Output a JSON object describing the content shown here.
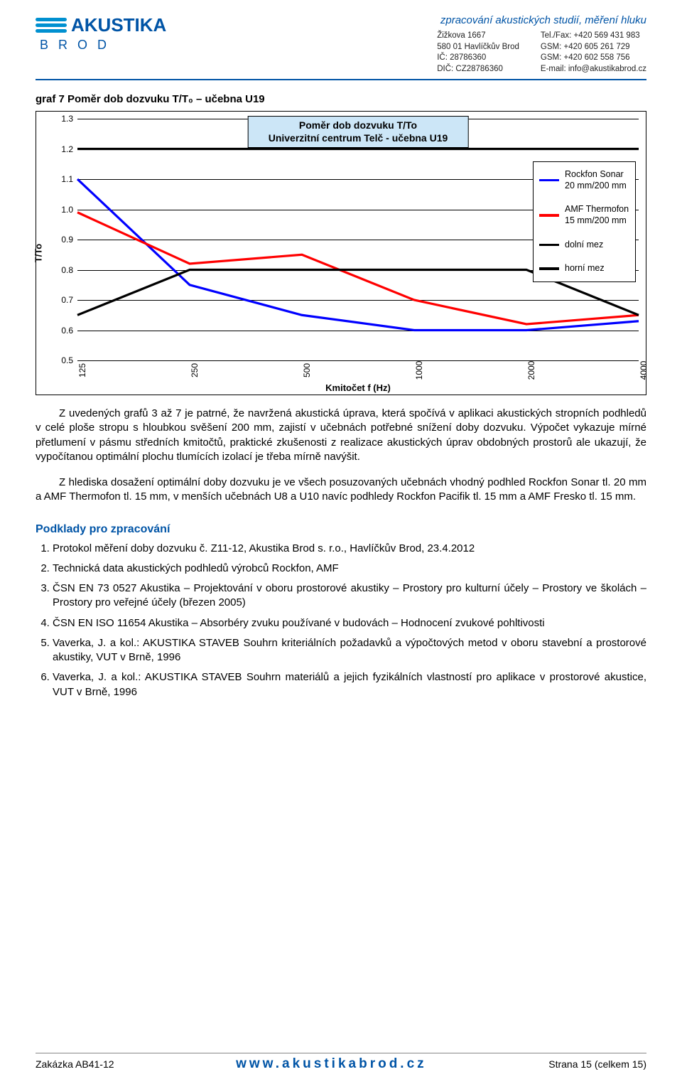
{
  "header": {
    "logo_text": "AKUSTIKA",
    "logo_sub": "BROD",
    "tagline": "zpracování akustických studií, měření hluku",
    "addr": {
      "line1": "Žižkova 1667",
      "line2": "580 01 Havlíčkův Brod",
      "line3": "IČ: 28786360",
      "line4": "DIČ: CZ28786360"
    },
    "contact": {
      "line1": "Tel./Fax: +420 569 431 983",
      "line2": "GSM:     +420 605 261 729",
      "line3": "GSM:     +420 602 558 756",
      "line4": "E-mail:  info@akustikabrod.cz"
    }
  },
  "chart_heading": "graf 7 Poměr dob dozvuku T/T₀ – učebna U19",
  "chart": {
    "title_line1": "Poměr dob dozvuku T/To",
    "title_line2": "Univerzitní centrum Telč - učebna U19",
    "yaxis_label": "T/To",
    "xaxis_label": "Kmitočet f (Hz)",
    "ylim": [
      0.5,
      1.3
    ],
    "yticks": [
      0.5,
      0.6,
      0.7,
      0.8,
      0.9,
      1.0,
      1.1,
      1.2,
      1.3
    ],
    "x_categories": [
      "125",
      "250",
      "500",
      "1000",
      "2000",
      "4000"
    ],
    "grid_color": "#000000",
    "series": [
      {
        "name": "Rockfon Sonar 20 mm/200 mm",
        "color": "#0000ff",
        "values": [
          1.1,
          0.75,
          0.65,
          0.6,
          0.6,
          0.63
        ]
      },
      {
        "name": "AMF Thermofon 15 mm/200 mm",
        "color": "#ff0000",
        "values": [
          0.99,
          0.82,
          0.85,
          0.7,
          0.62,
          0.65
        ]
      },
      {
        "name": "dolní mez",
        "color": "#000000",
        "values": [
          0.65,
          0.8,
          0.8,
          0.8,
          0.8,
          0.65
        ]
      },
      {
        "name": "horní mez",
        "color": "#000000",
        "values": [
          1.2,
          1.2,
          1.2,
          1.2,
          1.2,
          1.2
        ]
      }
    ],
    "legend": [
      {
        "label": "Rockfon Sonar 20 mm/200 mm",
        "color": "#0000ff"
      },
      {
        "label": "AMF Thermofon 15 mm/200 mm",
        "color": "#ff0000"
      },
      {
        "label": "dolní mez",
        "color": "#000000"
      },
      {
        "label": "horní mez",
        "color": "#000000"
      }
    ]
  },
  "para1": "Z uvedených grafů 3 až 7 je patrné, že navržená akustická úprava, která spočívá v aplikaci akustických stropních podhledů v celé ploše stropu s hloubkou svěšení 200 mm, zajistí v učebnách potřebné snížení doby dozvuku. Výpočet vykazuje mírné přetlumení v pásmu středních kmitočtů, praktické zkušenosti z realizace akustických úprav obdobných prostorů ale ukazují, že vypočítanou optimální plochu tlumících izolací je třeba mírně navýšit.",
  "para2": "Z hlediska dosažení optimální doby dozvuku je ve všech posuzovaných učebnách vhodný podhled Rockfon Sonar tl. 20 mm a AMF Thermofon tl. 15 mm, v menších učebnách U8 a U10 navíc podhledy Rockfon Pacifik tl. 15 mm a AMF Fresko tl. 15 mm.",
  "refs_heading": "Podklady pro zpracování",
  "refs": [
    "Protokol měření doby dozvuku č. Z11-12, Akustika Brod s. r.o., Havlíčkův Brod, 23.4.2012",
    "Technická data akustických podhledů výrobců Rockfon, AMF",
    "ČSN EN 73 0527 Akustika – Projektování v oboru prostorové akustiky – Prostory pro kulturní účely – Prostory ve školách – Prostory pro veřejné účely (březen 2005)",
    "ČSN EN ISO 11654 Akustika – Absorbéry zvuku používané v budovách – Hodnocení zvukové pohltivosti",
    "Vaverka, J. a kol.: AKUSTIKA STAVEB Souhrn kriteriálních požadavků a výpočtových metod v oboru stavební a prostorové akustiky, VUT v Brně, 1996",
    "Vaverka, J. a kol.: AKUSTIKA STAVEB Souhrn materiálů a jejich fyzikálních vlastností pro aplikace v prostorové akustice, VUT v Brně, 1996"
  ],
  "footer": {
    "left": "Zakázka AB41-12",
    "url": "www.akustikabrod.cz",
    "right": "Strana 15 (celkem 15)"
  }
}
